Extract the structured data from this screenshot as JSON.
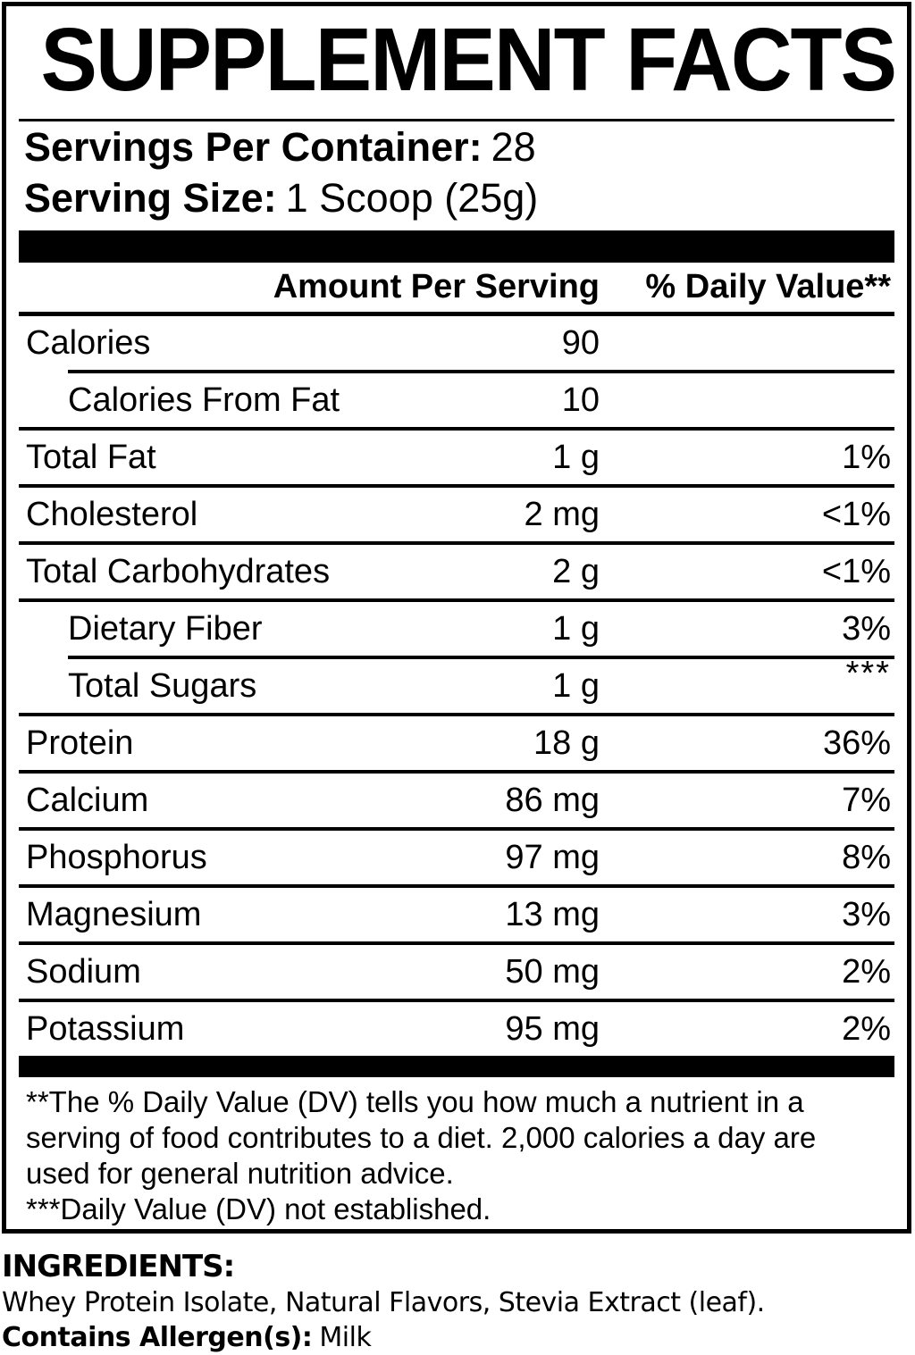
{
  "panel": {
    "title": "SUPPLEMENT FACTS",
    "servings_per_container": {
      "label": "Servings Per Container:",
      "value": "28"
    },
    "serving_size": {
      "label": "Serving Size:",
      "value": "1 Scoop (25g)"
    },
    "columns": {
      "amount": "Amount Per Serving",
      "dv": "% Daily Value**"
    },
    "rows": [
      {
        "name": "Calories",
        "amount": "90",
        "dv": ""
      },
      {
        "name": "Calories From Fat",
        "amount": "10",
        "dv": ""
      },
      {
        "name": "Total Fat",
        "amount": "1 g",
        "dv": "1%"
      },
      {
        "name": "Cholesterol",
        "amount": "2 mg",
        "dv": "<1%"
      },
      {
        "name": "Total Carbohydrates",
        "amount": "2 g",
        "dv": "<1%"
      },
      {
        "name": "Dietary Fiber",
        "amount": "1 g",
        "dv": "3%"
      },
      {
        "name": "Total Sugars",
        "amount": "1 g",
        "dv": "***"
      },
      {
        "name": "Protein",
        "amount": "18 g",
        "dv": "36%"
      },
      {
        "name": "Calcium",
        "amount": "86 mg",
        "dv": "7%"
      },
      {
        "name": "Phosphorus",
        "amount": "97 mg",
        "dv": "8%"
      },
      {
        "name": "Magnesium",
        "amount": "13 mg",
        "dv": "3%"
      },
      {
        "name": "Sodium",
        "amount": "50 mg",
        "dv": "2%"
      },
      {
        "name": "Potassium",
        "amount": "95 mg",
        "dv": "2%"
      }
    ],
    "footnotes": {
      "daily_value": "**The % Daily Value (DV) tells you how much a nutrient in a serving of food contributes to a diet. 2,000 calories a day are used for general nutrition advice.",
      "not_established": "***Daily Value (DV) not established."
    }
  },
  "ingredients": {
    "heading": "INGREDIENTS:",
    "list": "Whey Protein Isolate, Natural Flavors, Stevia Extract (leaf).",
    "allergen_label": "Contains Allergen(s):",
    "allergen_value": "Milk"
  },
  "colors": {
    "text": "#000000",
    "background": "#ffffff"
  }
}
